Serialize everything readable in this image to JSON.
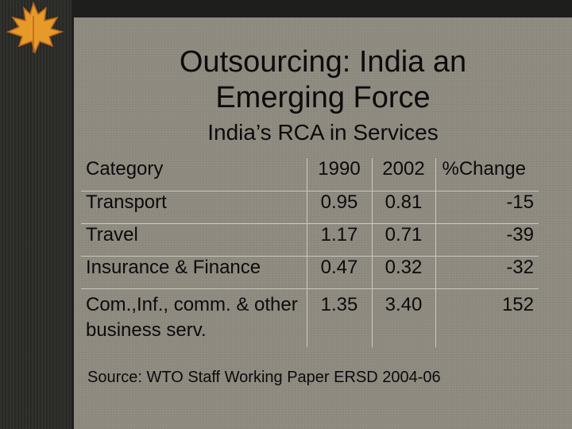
{
  "slide": {
    "title_line1": "Outsourcing: India an",
    "title_line2": "Emerging Force",
    "subtitle": "India’s RCA in Services",
    "source": "Source: WTO Staff Working Paper ERSD 2004-06"
  },
  "table": {
    "headers": [
      "Category",
      "1990",
      "2002",
      "%Change"
    ],
    "rows": [
      [
        "Transport",
        "0.95",
        "0.81",
        "-15"
      ],
      [
        "Travel",
        "1.17",
        "0.71",
        "-39"
      ],
      [
        "Insurance & Finance",
        "0.47",
        "0.32",
        "-32"
      ],
      [
        "Com.,Inf., comm. & other business serv.",
        "1.35",
        "3.40",
        "152"
      ]
    ]
  },
  "decor": {
    "leaf_icon": "maple-leaf-icon",
    "colors": {
      "slide_bg": "#8f8b81",
      "left_band": "#2a2a27",
      "text": "#0b0b0b",
      "leaf": "#e59a2a"
    }
  }
}
